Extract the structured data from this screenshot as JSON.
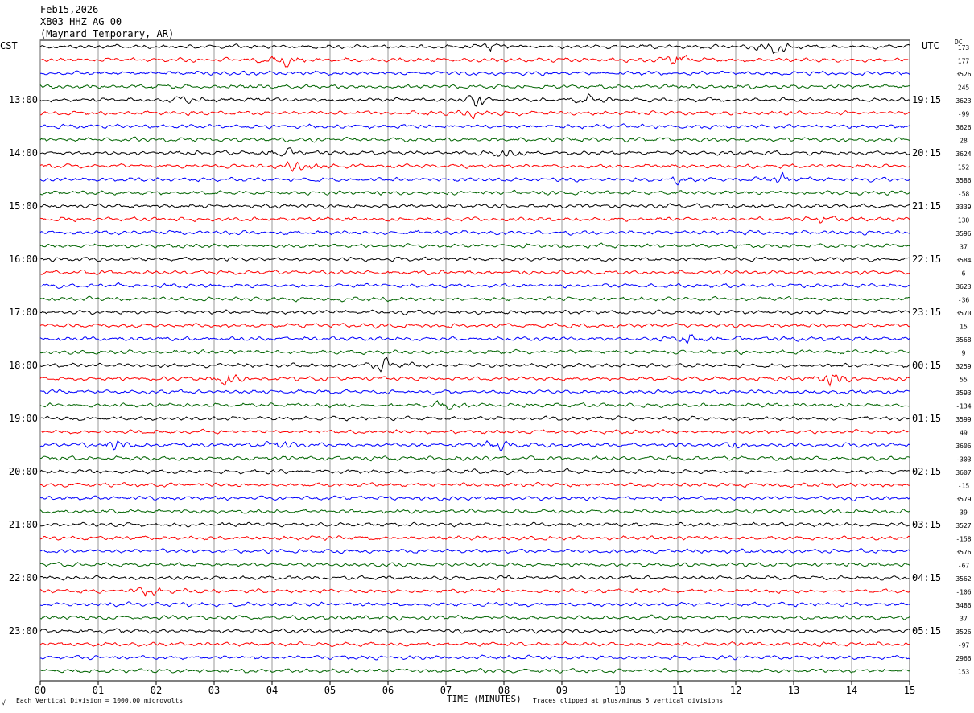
{
  "header": {
    "date": "Feb15,2026",
    "station": "XB03 HHZ AG 00",
    "location": "(Maynard Temporary, AR)"
  },
  "left_tz": "CST",
  "right_tz": "UTC",
  "dc_label": "DC",
  "footer": {
    "scale": "Each Vertical Division = 1000.00 microvolts",
    "clip": "Traces clipped at plus/minus 5 vertical divisions",
    "corner": "√"
  },
  "chart_data": {
    "type": "line",
    "title": "",
    "xlabel": "TIME (MINUTES)",
    "ylabel": "",
    "x_ticks": [
      "00",
      "01",
      "02",
      "03",
      "04",
      "05",
      "06",
      "07",
      "08",
      "09",
      "10",
      "11",
      "12",
      "13",
      "14",
      "15"
    ],
    "xlim": [
      0,
      15
    ],
    "grid": true,
    "trace_colors": [
      "#000000",
      "#ff0000",
      "#0000ff",
      "#006400"
    ],
    "trace_count": 48,
    "left_hour_labels": [
      "13:00",
      "14:00",
      "15:00",
      "16:00",
      "17:00",
      "18:00",
      "19:00",
      "20:00",
      "21:00",
      "22:00",
      "23:00"
    ],
    "right_hour_labels": [
      "19:15",
      "20:15",
      "21:15",
      "22:15",
      "23:15",
      "00:15",
      "01:15",
      "02:15",
      "03:15",
      "04:15",
      "05:15"
    ],
    "dc_offsets": [
      "173",
      "177",
      "3526",
      "245",
      "3623",
      "-99",
      "3626",
      "28",
      "3624",
      "152",
      "3586",
      "-58",
      "3339",
      "130",
      "3596",
      "37",
      "3584",
      "6",
      "3623",
      "-36",
      "3570",
      "15",
      "3568",
      "9",
      "3259",
      "55",
      "3593",
      "-134",
      "3599",
      "49",
      "3606",
      "-303",
      "3607",
      "-15",
      "3579",
      "39",
      "3527",
      "-158",
      "3576",
      "-67",
      "3562",
      "-106",
      "3486",
      "37",
      "3526",
      "-97",
      "2966",
      "153"
    ],
    "events": [
      {
        "trace": 0,
        "minute": 12.7,
        "amp": 1.6
      },
      {
        "trace": 0,
        "minute": 7.8,
        "amp": 0.7
      },
      {
        "trace": 1,
        "minute": 4.2,
        "amp": 1.5
      },
      {
        "trace": 1,
        "minute": 11.0,
        "amp": 0.9
      },
      {
        "trace": 4,
        "minute": 7.5,
        "amp": 1.2
      },
      {
        "trace": 4,
        "minute": 9.5,
        "amp": 0.9
      },
      {
        "trace": 4,
        "minute": 2.5,
        "amp": 0.6
      },
      {
        "trace": 5,
        "minute": 7.5,
        "amp": 0.8
      },
      {
        "trace": 8,
        "minute": 4.2,
        "amp": 0.8
      },
      {
        "trace": 8,
        "minute": 8.0,
        "amp": 0.9
      },
      {
        "trace": 9,
        "minute": 4.5,
        "amp": 1.3
      },
      {
        "trace": 10,
        "minute": 12.8,
        "amp": 0.8
      },
      {
        "trace": 10,
        "minute": 11.0,
        "amp": 0.5
      },
      {
        "trace": 13,
        "minute": 13.5,
        "amp": 0.5
      },
      {
        "trace": 22,
        "minute": 11.2,
        "amp": 0.8
      },
      {
        "trace": 24,
        "minute": 6.0,
        "amp": 1.4
      },
      {
        "trace": 25,
        "minute": 3.2,
        "amp": 1.2
      },
      {
        "trace": 25,
        "minute": 13.7,
        "amp": 1.3
      },
      {
        "trace": 27,
        "minute": 7.0,
        "amp": 0.8
      },
      {
        "trace": 30,
        "minute": 1.3,
        "amp": 0.9
      },
      {
        "trace": 30,
        "minute": 4.1,
        "amp": 0.9
      },
      {
        "trace": 30,
        "minute": 7.9,
        "amp": 0.9
      },
      {
        "trace": 30,
        "minute": 12.0,
        "amp": 0.6
      },
      {
        "trace": 41,
        "minute": 1.8,
        "amp": 1.2
      }
    ]
  }
}
